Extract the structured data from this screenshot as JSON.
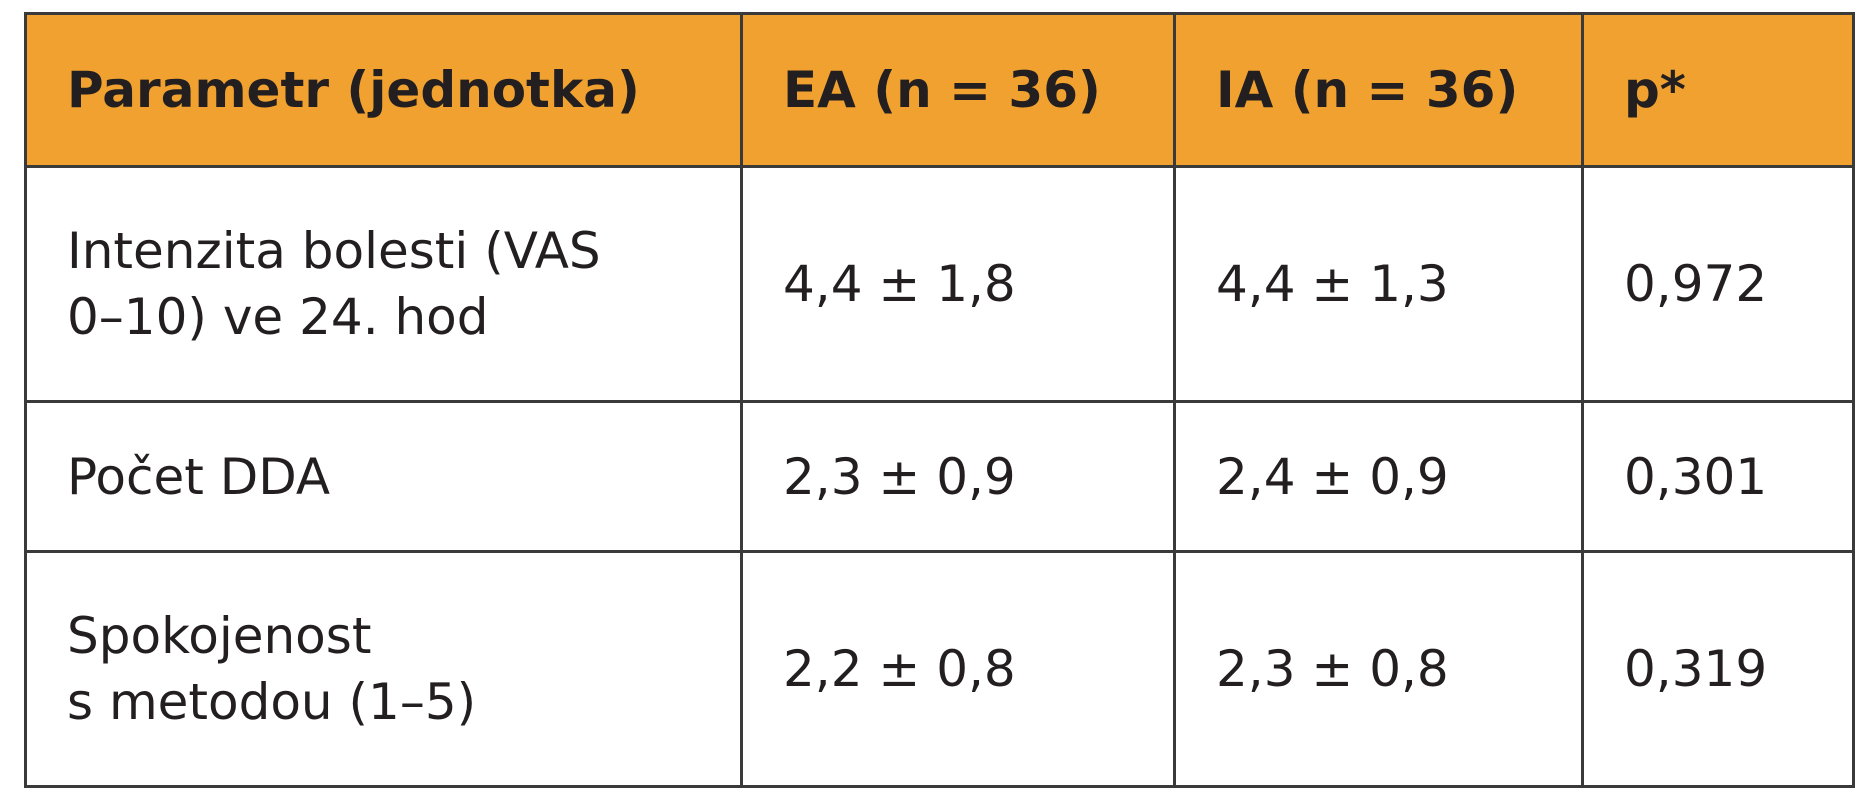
{
  "table": {
    "header": [
      "Parametr (jednotka)",
      "EA (n = 36)",
      "IA (n = 36)",
      "p*"
    ],
    "rows": [
      [
        [
          "Intenzita bolesti (VAS",
          "0–10) ve 24. hod"
        ],
        "4,4 ± 1,8",
        "4,4 ± 1,3",
        "0,972"
      ],
      [
        [
          "Počet DDA"
        ],
        "2,3 ± 0,9",
        "2,4 ± 0,9",
        "0,301"
      ],
      [
        [
          "Spokojenost",
          "s metodou (1–5)"
        ],
        "2,2 ± 0,8",
        "2,3 ± 0,8",
        "0,319"
      ]
    ]
  }
}
